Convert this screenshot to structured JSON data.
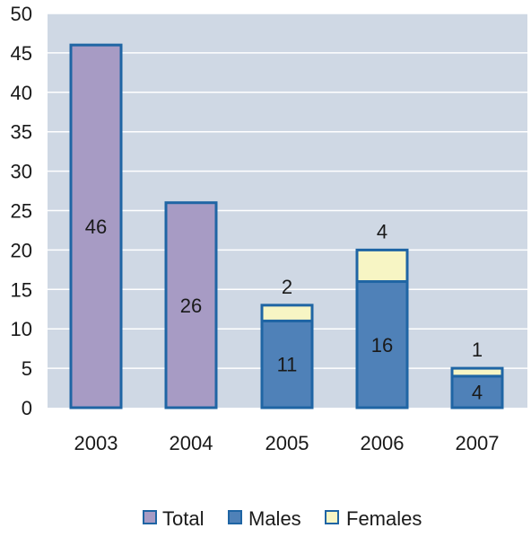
{
  "chart_data": {
    "type": "bar",
    "stacked": true,
    "title": "",
    "xlabel": "",
    "ylabel": "",
    "categories": [
      "2003",
      "2004",
      "2005",
      "2006",
      "2007"
    ],
    "ylim": [
      0,
      50
    ],
    "yticks": [
      "0",
      "5",
      "10",
      "15",
      "20",
      "25",
      "30",
      "35",
      "40",
      "45",
      "50"
    ],
    "grid": true,
    "legend_position": "bottom",
    "series": [
      {
        "name": "Total",
        "values": [
          46,
          26,
          null,
          null,
          null
        ],
        "color": "#a79bc4",
        "labels": [
          "46",
          "26",
          "",
          "",
          ""
        ]
      },
      {
        "name": "Males",
        "values": [
          null,
          null,
          11,
          16,
          4
        ],
        "color": "#4f81b8",
        "labels": [
          "",
          "",
          "11",
          "16",
          "4"
        ]
      },
      {
        "name": "Females",
        "values": [
          null,
          null,
          2,
          4,
          1
        ],
        "color": "#f7f5c4",
        "labels": [
          "",
          "",
          "2",
          "4",
          "1"
        ]
      }
    ],
    "colors": {
      "plot_background": "#cfd8e4",
      "gridline": "#ffffff",
      "bar_border": "#1f65a4",
      "text": "#1a1a1a"
    }
  }
}
